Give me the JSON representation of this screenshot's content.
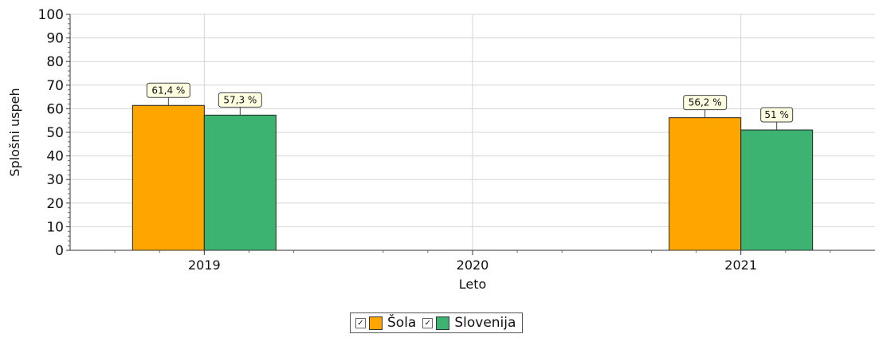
{
  "chart_data": {
    "type": "bar",
    "categories": [
      "2019",
      "2020",
      "2021"
    ],
    "series": [
      {
        "name": "Šola",
        "values": [
          61.4,
          null,
          56.2
        ],
        "labels": [
          "61,4 %",
          "",
          "56,2 %"
        ],
        "color": "#FFA500"
      },
      {
        "name": "Slovenija",
        "values": [
          57.3,
          null,
          51
        ],
        "labels": [
          "57,3 %",
          "",
          "51 %"
        ],
        "color": "#3CB371"
      }
    ],
    "xlabel": "Leto",
    "ylabel": "Splošni uspeh",
    "ylim": [
      0,
      100
    ],
    "yticks": [
      0,
      10,
      20,
      30,
      40,
      50,
      60,
      70,
      80,
      90,
      100
    ],
    "grid": true,
    "legend_position": "bottom-center"
  }
}
